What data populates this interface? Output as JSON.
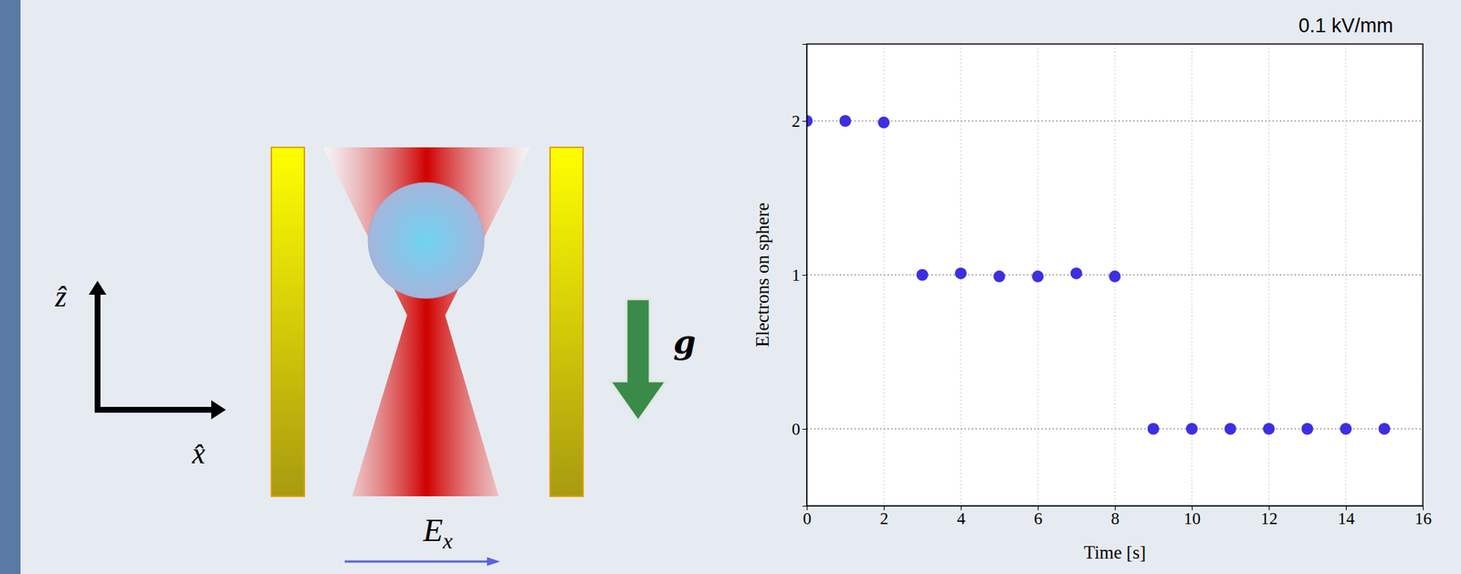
{
  "chart_data": {
    "type": "scatter",
    "title": "0.1 kV/mm",
    "x_label": "Time [s]",
    "y_label": "Electrons on sphere",
    "x": [
      0,
      1,
      2,
      3,
      4,
      5,
      6,
      7,
      8,
      9,
      10,
      11,
      12,
      13,
      14,
      15
    ],
    "values": [
      2,
      2,
      1.99,
      1,
      1.01,
      0.99,
      0.99,
      1.01,
      0.99,
      0,
      0,
      0,
      0,
      0,
      0,
      0
    ],
    "color": "#3d2fe0",
    "marker": "circle",
    "xlim": [
      0,
      16
    ],
    "xticks": [
      0,
      2,
      4,
      6,
      8,
      10,
      12,
      14,
      16
    ],
    "ylim": [
      -0.5,
      2.5
    ],
    "yticks": [
      0,
      1,
      2
    ],
    "grid": true
  },
  "diagram": {
    "axis_labels": [
      "ẑ",
      "x̂"
    ],
    "gravity_label": "g",
    "field_label": {
      "symbol": "E",
      "subscript": "x"
    }
  }
}
